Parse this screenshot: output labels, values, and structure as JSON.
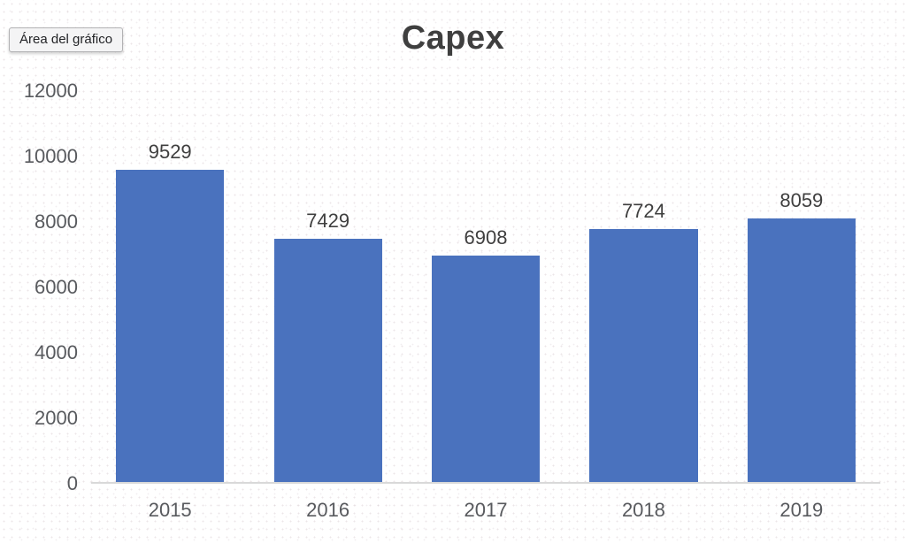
{
  "tooltip": {
    "label": "Área del gráfico"
  },
  "chart_data": {
    "type": "bar",
    "title": "Capex",
    "categories": [
      "2015",
      "2016",
      "2017",
      "2018",
      "2019"
    ],
    "values": [
      9529,
      7429,
      6908,
      7724,
      8059
    ],
    "data_labels": [
      9529,
      7429,
      6908,
      7724,
      8059
    ],
    "xlabel": "",
    "ylabel": "",
    "ylim": [
      0,
      12000
    ],
    "yticks": [
      0,
      2000,
      4000,
      6000,
      8000,
      10000,
      12000
    ],
    "grid": false,
    "legend": "none",
    "bar_color": "#4a72be",
    "axis_line_color": "#d9d9d9",
    "title_color": "#3f3f3f",
    "data_label_color": "#3f3f3f",
    "tick_label_color": "#585a5e"
  }
}
